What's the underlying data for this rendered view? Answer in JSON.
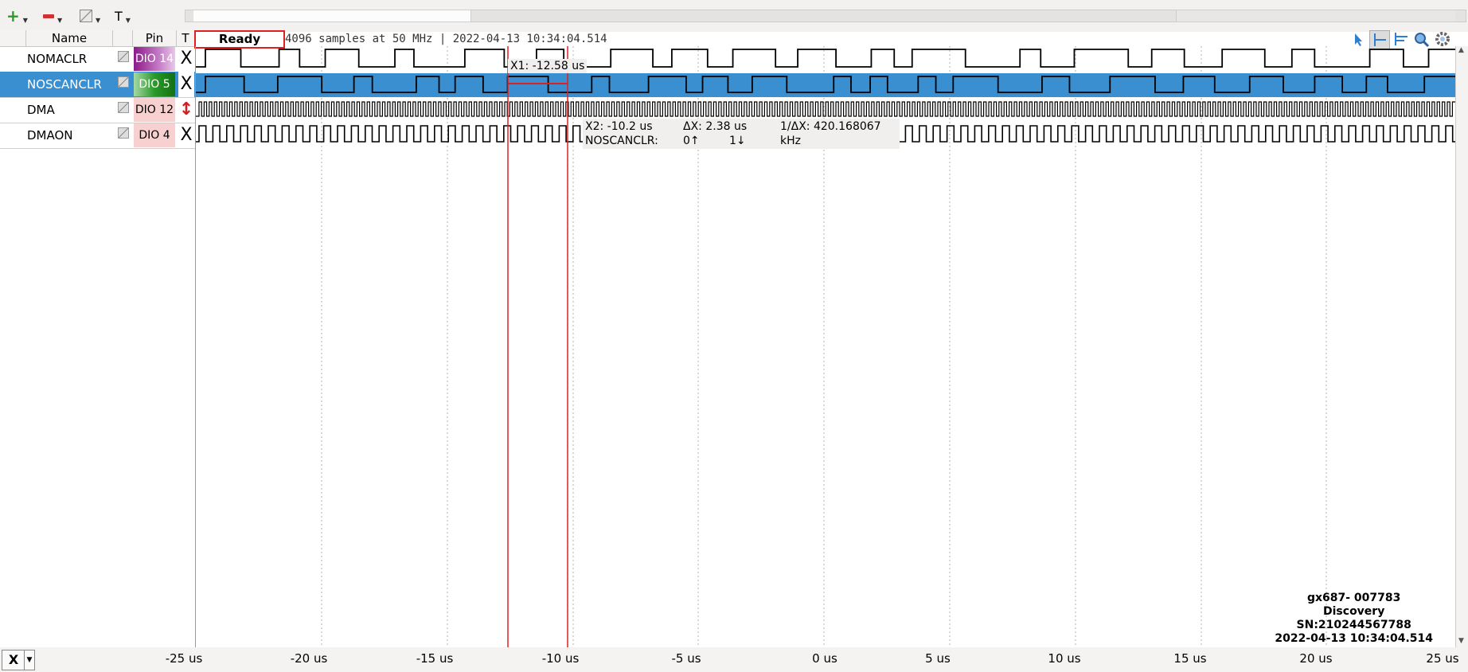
{
  "toolbar": {
    "add_icon": "plus-icon",
    "remove_icon": "minus-icon",
    "edit_icon": "edit-icon",
    "text_label": "T"
  },
  "headers": {
    "name": "Name",
    "pin": "Pin",
    "trigger": "T"
  },
  "status": {
    "ready": "Ready",
    "info": "4096 samples at 50 MHz | 2022-04-13 10:34:04.514"
  },
  "signals": [
    {
      "name": "NOMACLR",
      "pin": "DIO 14",
      "trigger": "X",
      "pin_bg": "#8a1a8a",
      "pin_bg2": "#d9a6d9",
      "selected": false
    },
    {
      "name": "NOSCANCLR",
      "pin": "DIO 5",
      "trigger": "X",
      "pin_bg": "#1a8a1a",
      "pin_bg2": "#a6d9a6",
      "selected": true
    },
    {
      "name": "DMA",
      "pin": "DIO 12",
      "trigger": "↕",
      "pin_bg": "#f6c6c6",
      "pin_bg2": "#f6c6c6",
      "selected": false
    },
    {
      "name": "DMAON",
      "pin": "DIO 4",
      "trigger": "X",
      "pin_bg": "#f6c6c6",
      "pin_bg2": "#f6c6c6",
      "selected": false
    }
  ],
  "cursors": {
    "x1_label": "X1: -12.58 us",
    "x2_label": "X2: -10.2 us",
    "dx_label": "ΔX: 2.38 us",
    "inv_dx_label": "1/ΔX: 420.168067 kHz",
    "signal": "NOSCANCLR:",
    "rising": "0↑",
    "falling": "1↓"
  },
  "x_axis": [
    "-25 us",
    "-20 us",
    "-15 us",
    "-10 us",
    "-5 us",
    "0 us",
    "5 us",
    "10 us",
    "15 us",
    "20 us",
    "25 us"
  ],
  "device": {
    "name": "gx687- 007783",
    "model": "Discovery",
    "sn": "SN:210244567788",
    "timestamp": "2022-04-13 10:34:04.514"
  },
  "bottom": {
    "axis_select": "X"
  },
  "colors": {
    "selected_row": "#3a8fd0",
    "cursor": "#e02020"
  }
}
